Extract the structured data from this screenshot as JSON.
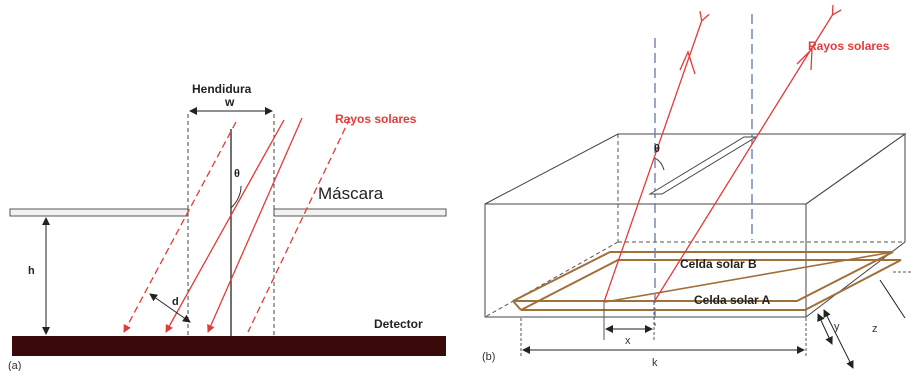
{
  "panel_a": {
    "panel_label": "(a)",
    "slit_label": "Hendidura",
    "width_label": "w",
    "rays_label": "Rayos solares",
    "mask_label": "Máscara",
    "height_label": "h",
    "angle_label": "θ",
    "offset_label": "d",
    "detector_label": "Detector"
  },
  "panel_b": {
    "panel_label": "(b)",
    "rays_label": "Rayos solares",
    "angle_label": "θ",
    "cell_b_label": "Celda solar B",
    "cell_a_label": "Celda solar A",
    "x_label": "x",
    "k_label": "k",
    "y_label": "y",
    "z_label": "z"
  },
  "colors": {
    "ray": "#e23b3b",
    "detector": "#3a0a0a",
    "cell_edge": "#a0703a",
    "line": "#333333",
    "dash": "#444444",
    "vertical_dash_b": "#6b7fb3"
  }
}
